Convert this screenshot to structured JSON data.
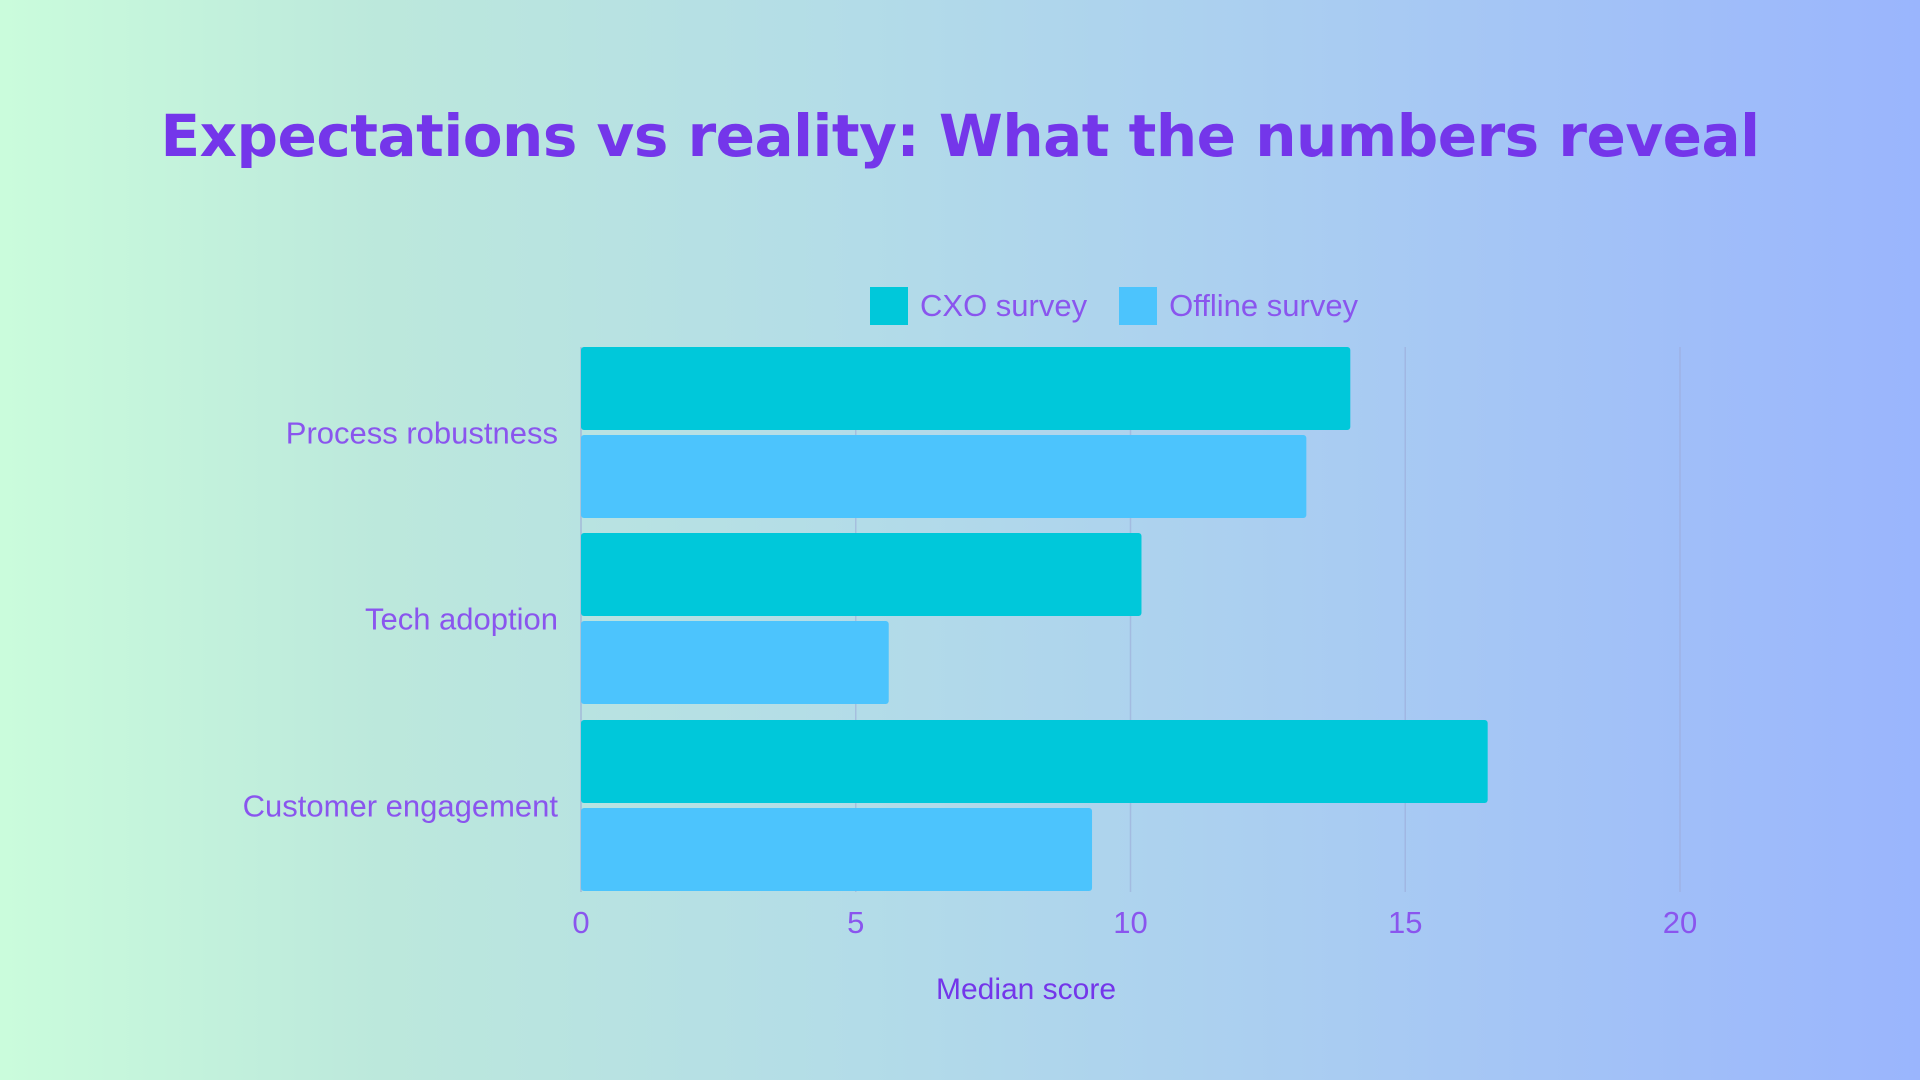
{
  "colors": {
    "title": "#7436ea",
    "text": "#8a55ee",
    "grid": "#9aa8d6",
    "series_cxo": "#00c8da",
    "series_offline": "#4cc4fd"
  },
  "chart_data": {
    "type": "bar",
    "orientation": "horizontal",
    "title": "Expectations vs reality: What the numbers reveal",
    "xlabel": "Median  score",
    "ylabel": "",
    "categories": [
      "Process robustness",
      "Tech adoption",
      "Customer engagement"
    ],
    "series": [
      {
        "name": "CXO survey",
        "values": [
          14.0,
          10.2,
          16.5
        ]
      },
      {
        "name": "Offline survey",
        "values": [
          13.2,
          5.6,
          9.3
        ]
      }
    ],
    "xlim": [
      0,
      20
    ],
    "xticks": [
      0,
      5,
      10,
      15,
      20
    ],
    "grid": "vertical",
    "legend": "top-center"
  }
}
